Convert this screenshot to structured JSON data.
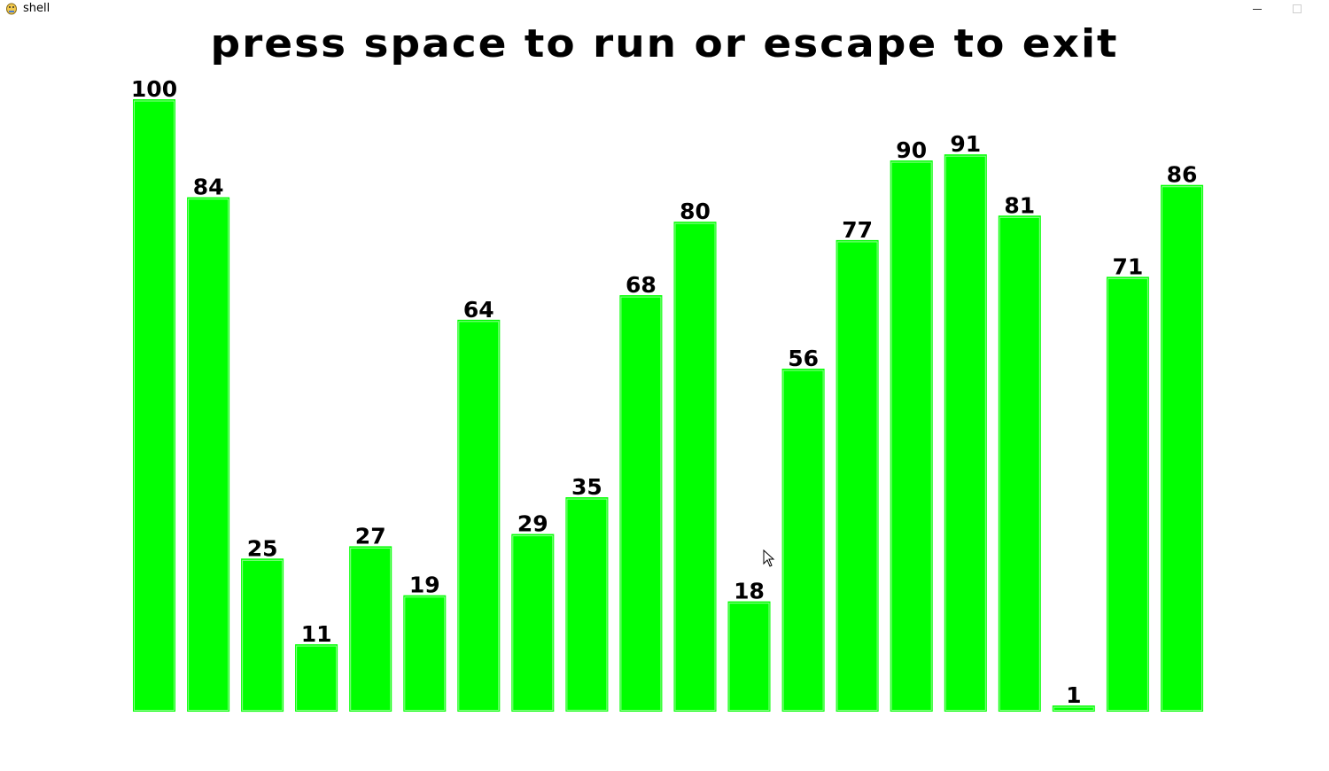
{
  "window": {
    "title": "shell"
  },
  "heading": "press space to run or escape to exit",
  "colors": {
    "bar": "#00ff00",
    "background": "#ffffff",
    "text": "#000000"
  },
  "icons": {
    "app": "pygame-snake-icon",
    "minimize": "minimize-icon",
    "maximize": "maximize-icon",
    "cursor": "mouse-cursor-icon"
  },
  "chart_data": {
    "type": "bar",
    "values": [
      100,
      84,
      25,
      11,
      27,
      19,
      64,
      29,
      35,
      68,
      80,
      18,
      56,
      77,
      90,
      91,
      81,
      1,
      71,
      86
    ],
    "ylim": [
      0,
      100
    ]
  }
}
